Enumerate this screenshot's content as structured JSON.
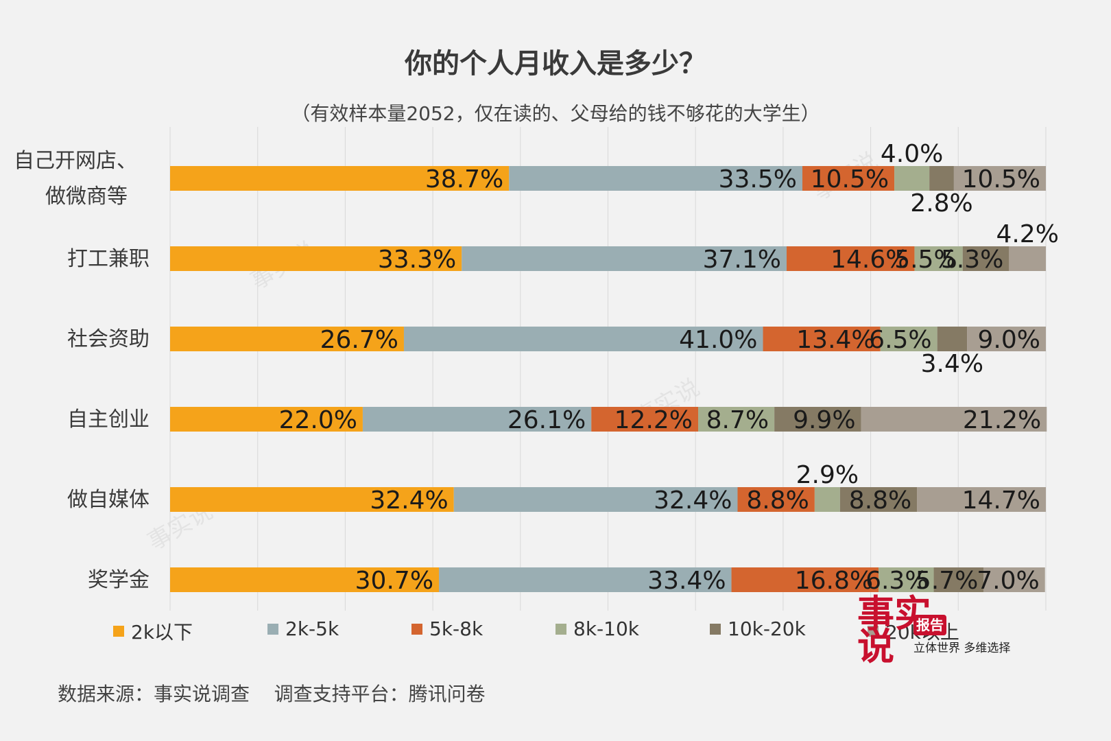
{
  "title": "你的个人月收入是多少？",
  "subtitle": "（有效样本量2052，仅在读的、父母给的钱不够花的大学生）",
  "source": "数据来源：事实说调查    调查支持平台：腾讯问卷",
  "logo": {
    "main": "事实说",
    "badge": "报告",
    "tagline": "立体世界 多维选择"
  },
  "colors": [
    "#f5a31a",
    "#9aaeb3",
    "#d4652f",
    "#a4ae8e",
    "#857a64",
    "#a89e92"
  ],
  "chart_data": {
    "type": "bar",
    "orientation": "horizontal-stacked-100",
    "categories": [
      [
        "自己开网店、",
        "做微商等"
      ],
      [
        "打工兼职"
      ],
      [
        "社会资助"
      ],
      [
        "自主创业"
      ],
      [
        "做自媒体"
      ],
      [
        "奖学金"
      ]
    ],
    "series": [
      {
        "name": "2k以下",
        "values": [
          38.7,
          33.3,
          26.7,
          22.0,
          32.4,
          30.7
        ]
      },
      {
        "name": "2k-5k",
        "values": [
          33.5,
          37.1,
          41.0,
          26.1,
          32.4,
          33.4
        ]
      },
      {
        "name": "5k-8k",
        "values": [
          10.5,
          14.6,
          13.4,
          12.2,
          8.8,
          16.8
        ]
      },
      {
        "name": "8k-10k",
        "values": [
          4.0,
          5.5,
          6.5,
          8.7,
          2.9,
          6.3
        ]
      },
      {
        "name": "10k-20k",
        "values": [
          2.8,
          5.3,
          3.4,
          9.9,
          8.8,
          5.7
        ]
      },
      {
        "name": "20k以上",
        "values": [
          10.5,
          4.2,
          9.0,
          21.2,
          14.7,
          7.0
        ]
      }
    ],
    "value_format": "0.0%",
    "xlim": [
      0,
      100
    ],
    "grid": true,
    "legend": "bottom"
  }
}
